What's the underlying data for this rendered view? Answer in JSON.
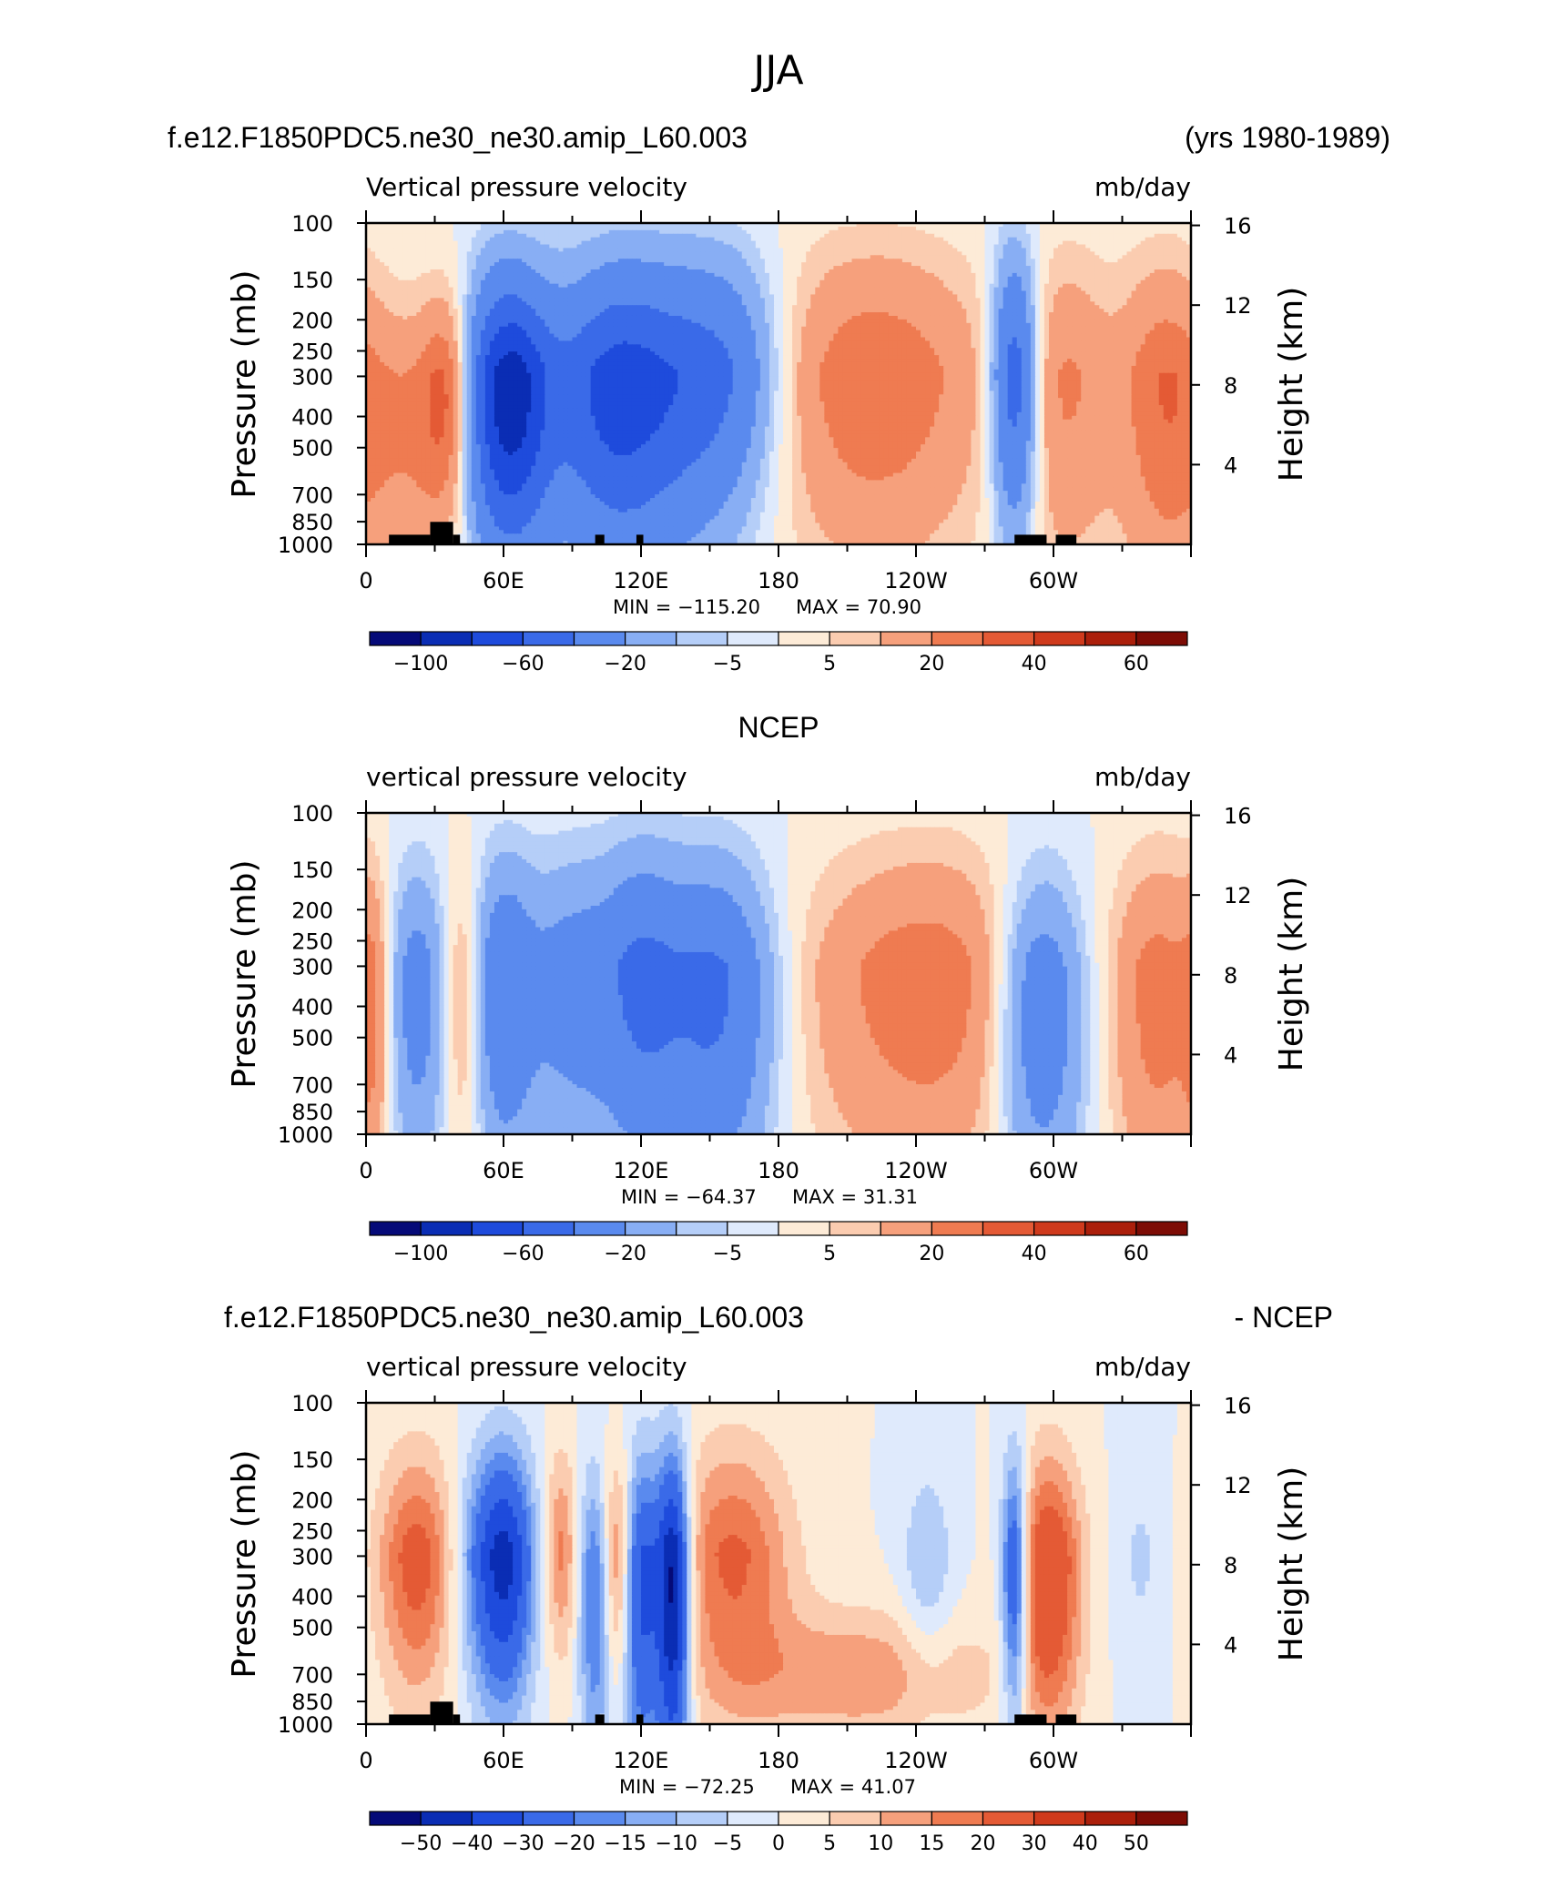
{
  "figure_title": "JJA",
  "chart_data": [
    {
      "type": "heatmap",
      "header_left": "f.e12.F1850PDC5.ne30_ne30.amip_L60.003",
      "header_center": "",
      "header_right": "(yrs 1980-1989)",
      "title": "Vertical pressure velocity",
      "units": "mb/day",
      "ylabel": "Pressure (mb)",
      "y2label": "Height (km)",
      "pressure_ticks": [
        "100",
        "150",
        "200",
        "250",
        "300",
        "400",
        "500",
        "700",
        "850",
        "1000"
      ],
      "height_ticks": [
        "16",
        "12",
        "8",
        "4"
      ],
      "x_ticks": [
        "0",
        "60E",
        "120E",
        "180",
        "120W",
        "60W"
      ],
      "min_label": "MIN = −115.20",
      "max_label": "MAX =   70.90",
      "min": -115.2,
      "max": 70.9,
      "colorbar_labels": [
        "−100",
        "−60",
        "−20",
        "−5",
        "5",
        "20",
        "40",
        "60"
      ],
      "colorbar_levels": [
        -120,
        -100,
        -80,
        -60,
        -40,
        -20,
        -10,
        -5,
        0,
        5,
        10,
        20,
        30,
        40,
        50,
        60,
        70
      ],
      "colorbar_colors": [
        "#050a78",
        "#0a2db4",
        "#1e4bdc",
        "#3a6ae8",
        "#5a8aee",
        "#88aef4",
        "#b5cef8",
        "#dfeafc",
        "#fdebd7",
        "#fbccb0",
        "#f6a07c",
        "#ef7b51",
        "#e45a35",
        "#cf3a1c",
        "#ab1f0b",
        "#7d0c05"
      ],
      "features": [
        {
          "lon": 20,
          "level": 0.65,
          "width": 16,
          "depth": 0.55,
          "value": 18
        },
        {
          "lon": 36,
          "level": 0.52,
          "width": 8,
          "depth": 0.45,
          "value": 30
        },
        {
          "lon": 62,
          "level": 0.52,
          "width": 13,
          "depth": 0.58,
          "value": -92
        },
        {
          "lon": 105,
          "level": 0.5,
          "width": 18,
          "depth": 0.62,
          "value": -48
        },
        {
          "lon": 135,
          "level": 0.45,
          "width": 25,
          "depth": 0.65,
          "value": -45
        },
        {
          "lon": 160,
          "level": 0.35,
          "width": 16,
          "depth": 0.55,
          "value": -20
        },
        {
          "lon": 222,
          "level": 0.4,
          "width": 34,
          "depth": 0.75,
          "value": 30
        },
        {
          "lon": 283,
          "level": 0.4,
          "width": 7,
          "depth": 0.65,
          "value": -60
        },
        {
          "lon": 306,
          "level": 0.45,
          "width": 14,
          "depth": 0.75,
          "value": 20
        },
        {
          "lon": 348,
          "level": 0.5,
          "width": 14,
          "depth": 0.75,
          "value": 28
        }
      ],
      "terrain": [
        {
          "lon": [
            10,
            28
          ],
          "top": 0.97
        },
        {
          "lon": [
            28,
            38
          ],
          "top": 0.93
        },
        {
          "lon": [
            38,
            41
          ],
          "top": 0.97
        },
        {
          "lon": [
            100,
            104
          ],
          "top": 0.97
        },
        {
          "lon": [
            118,
            121
          ],
          "top": 0.97
        },
        {
          "lon": [
            283,
            297
          ],
          "top": 0.97
        },
        {
          "lon": [
            301,
            310
          ],
          "top": 0.97
        }
      ]
    },
    {
      "type": "heatmap",
      "header_left": "",
      "header_center": "NCEP",
      "header_right": "",
      "title": "vertical pressure velocity",
      "units": "mb/day",
      "ylabel": "Pressure (mb)",
      "y2label": "Height (km)",
      "pressure_ticks": [
        "100",
        "150",
        "200",
        "250",
        "300",
        "400",
        "500",
        "700",
        "850",
        "1000"
      ],
      "height_ticks": [
        "16",
        "12",
        "8",
        "4"
      ],
      "x_ticks": [
        "0",
        "60E",
        "120E",
        "180",
        "120W",
        "60W"
      ],
      "min_label": "MIN = −64.37",
      "max_label": "MAX =   31.31",
      "min": -64.37,
      "max": 31.31,
      "colorbar_labels": [
        "−100",
        "−60",
        "−20",
        "−5",
        "5",
        "20",
        "40",
        "60"
      ],
      "colorbar_levels": [
        -120,
        -100,
        -80,
        -60,
        -40,
        -20,
        -10,
        -5,
        0,
        5,
        10,
        20,
        30,
        40,
        50,
        60,
        70
      ],
      "colorbar_colors": [
        "#050a78",
        "#0a2db4",
        "#1e4bdc",
        "#3a6ae8",
        "#5a8aee",
        "#88aef4",
        "#b5cef8",
        "#dfeafc",
        "#fdebd7",
        "#fbccb0",
        "#f6a07c",
        "#ef7b51",
        "#e45a35",
        "#cf3a1c",
        "#ab1f0b",
        "#7d0c05"
      ],
      "features": [
        {
          "lon": 3,
          "level": 0.6,
          "width": 5,
          "depth": 0.65,
          "value": 16
        },
        {
          "lon": 22,
          "level": 0.55,
          "width": 9,
          "depth": 0.65,
          "value": -28
        },
        {
          "lon": 42,
          "level": 0.55,
          "width": 6,
          "depth": 0.6,
          "value": 15
        },
        {
          "lon": 60,
          "level": 0.52,
          "width": 9,
          "depth": 0.65,
          "value": -34
        },
        {
          "lon": 90,
          "level": 0.5,
          "width": 16,
          "depth": 0.65,
          "value": -28
        },
        {
          "lon": 120,
          "level": 0.48,
          "width": 12,
          "depth": 0.7,
          "value": -34
        },
        {
          "lon": 152,
          "level": 0.55,
          "width": 18,
          "depth": 0.7,
          "value": -44
        },
        {
          "lon": 245,
          "level": 0.5,
          "width": 38,
          "depth": 0.75,
          "value": 27
        },
        {
          "lon": 294,
          "level": 0.6,
          "width": 14,
          "depth": 0.7,
          "value": -40
        },
        {
          "lon": 346,
          "level": 0.55,
          "width": 14,
          "depth": 0.8,
          "value": 24
        }
      ],
      "terrain": []
    },
    {
      "type": "heatmap",
      "header_left": "f.e12.F1850PDC5.ne30_ne30.amip_L60.003",
      "header_center": "",
      "header_right": "- NCEP",
      "title": "vertical pressure velocity",
      "units": "mb/day",
      "ylabel": "Pressure (mb)",
      "y2label": "Height (km)",
      "pressure_ticks": [
        "100",
        "150",
        "200",
        "250",
        "300",
        "400",
        "500",
        "700",
        "850",
        "1000"
      ],
      "height_ticks": [
        "16",
        "12",
        "8",
        "4"
      ],
      "x_ticks": [
        "0",
        "60E",
        "120E",
        "180",
        "120W",
        "60W"
      ],
      "min_label": "MIN = −72.25",
      "max_label": "MAX =   41.07",
      "min": -72.25,
      "max": 41.07,
      "colorbar_labels": [
        "−50",
        "−40",
        "−30",
        "−20",
        "−15",
        "−10",
        "−5",
        "0",
        "5",
        "10",
        "15",
        "20",
        "30",
        "40",
        "50"
      ],
      "colorbar_levels": [
        -60,
        -50,
        -40,
        -30,
        -20,
        -15,
        -10,
        -5,
        0,
        5,
        10,
        15,
        20,
        30,
        40,
        50,
        60
      ],
      "colorbar_colors": [
        "#050a78",
        "#0a2db4",
        "#1e4bdc",
        "#3a6ae8",
        "#5a8aee",
        "#88aef4",
        "#b5cef8",
        "#dfeafc",
        "#fdebd7",
        "#fbccb0",
        "#f6a07c",
        "#ef7b51",
        "#e45a35",
        "#cf3a1c",
        "#ab1f0b",
        "#7d0c05"
      ],
      "features": [
        {
          "lon": 22,
          "level": 0.45,
          "width": 12,
          "depth": 0.55,
          "value": 24
        },
        {
          "lon": 45,
          "level": 0.45,
          "width": 7,
          "depth": 0.55,
          "value": -8
        },
        {
          "lon": 60,
          "level": 0.45,
          "width": 9,
          "depth": 0.55,
          "value": -45
        },
        {
          "lon": 85,
          "level": 0.4,
          "width": 5,
          "depth": 0.45,
          "value": 18
        },
        {
          "lon": 100,
          "level": 0.6,
          "width": 5,
          "depth": 0.65,
          "value": -22
        },
        {
          "lon": 110,
          "level": 0.45,
          "width": 5,
          "depth": 0.5,
          "value": 22
        },
        {
          "lon": 120,
          "level": 0.55,
          "width": 6,
          "depth": 0.7,
          "value": -35
        },
        {
          "lon": 134,
          "level": 0.55,
          "width": 5,
          "depth": 0.7,
          "value": -55
        },
        {
          "lon": 160,
          "level": 0.4,
          "width": 18,
          "depth": 0.6,
          "value": 22
        },
        {
          "lon": 215,
          "level": 0.85,
          "width": 40,
          "depth": 0.25,
          "value": 14
        },
        {
          "lon": 245,
          "level": 0.48,
          "width": 8,
          "depth": 0.5,
          "value": -10
        },
        {
          "lon": 283,
          "level": 0.5,
          "width": 4,
          "depth": 0.6,
          "value": -35
        },
        {
          "lon": 298,
          "level": 0.5,
          "width": 10,
          "depth": 0.6,
          "value": 30
        },
        {
          "lon": 338,
          "level": 0.4,
          "width": 8,
          "depth": 0.6,
          "value": -6
        }
      ],
      "terrain": [
        {
          "lon": [
            10,
            28
          ],
          "top": 0.97
        },
        {
          "lon": [
            28,
            38
          ],
          "top": 0.93
        },
        {
          "lon": [
            38,
            41
          ],
          "top": 0.97
        },
        {
          "lon": [
            100,
            104
          ],
          "top": 0.97
        },
        {
          "lon": [
            118,
            121
          ],
          "top": 0.97
        },
        {
          "lon": [
            283,
            297
          ],
          "top": 0.97
        },
        {
          "lon": [
            301,
            310
          ],
          "top": 0.97
        }
      ]
    }
  ]
}
